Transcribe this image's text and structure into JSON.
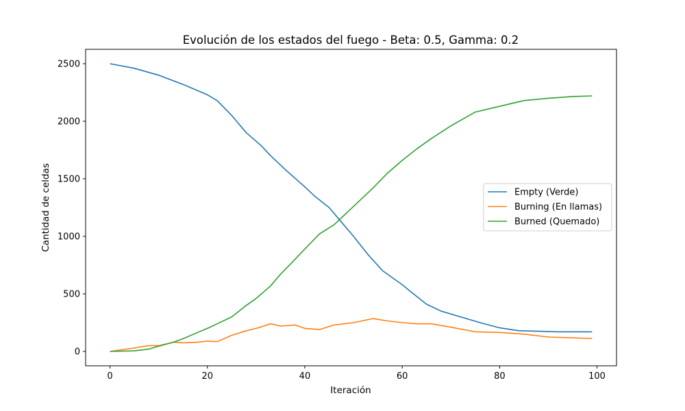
{
  "chart_data": {
    "type": "line",
    "title": "Evolución de los estados del fuego - Beta: 0.5, Gamma: 0.2",
    "xlabel": "Iteración",
    "ylabel": "Cantidad de celdas",
    "xlim": [
      -5,
      104
    ],
    "ylim": [
      -125,
      2625
    ],
    "xticks": [
      0,
      20,
      40,
      60,
      80,
      100
    ],
    "yticks": [
      0,
      500,
      1000,
      1500,
      2000,
      2500
    ],
    "grid": false,
    "legend_position": "center-right",
    "series": [
      {
        "name": "Empty (Verde)",
        "color": "#1f77b4",
        "x": [
          0,
          5,
          10,
          15,
          20,
          22,
          25,
          28,
          31,
          33,
          36,
          40,
          42,
          45,
          47,
          50,
          53,
          56,
          60,
          62,
          65,
          68,
          72,
          76,
          80,
          84,
          88,
          92,
          96,
          99
        ],
        "y": [
          2500,
          2460,
          2400,
          2320,
          2230,
          2180,
          2050,
          1900,
          1790,
          1700,
          1580,
          1430,
          1350,
          1250,
          1150,
          1000,
          840,
          700,
          580,
          510,
          410,
          350,
          300,
          250,
          205,
          180,
          175,
          170,
          170,
          170
        ]
      },
      {
        "name": "Burning (En llamas)",
        "color": "#ff7f0e",
        "x": [
          0,
          5,
          8,
          10,
          13,
          15,
          18,
          20,
          22,
          25,
          28,
          30,
          33,
          35,
          38,
          40,
          43,
          46,
          50,
          54,
          57,
          60,
          63,
          66,
          70,
          75,
          80,
          85,
          90,
          95,
          99
        ],
        "y": [
          0,
          30,
          50,
          50,
          80,
          75,
          80,
          90,
          85,
          140,
          180,
          200,
          240,
          220,
          230,
          200,
          190,
          230,
          250,
          285,
          265,
          250,
          240,
          240,
          210,
          170,
          165,
          150,
          125,
          118,
          112
        ]
      },
      {
        "name": "Burned (Quemado)",
        "color": "#2ca02c",
        "x": [
          0,
          5,
          8,
          10,
          13,
          15,
          18,
          20,
          22,
          25,
          28,
          30,
          33,
          35,
          38,
          40,
          43,
          46,
          50,
          54,
          57,
          60,
          63,
          66,
          70,
          75,
          80,
          85,
          90,
          95,
          99
        ],
        "y": [
          0,
          5,
          20,
          45,
          80,
          110,
          165,
          200,
          240,
          300,
          400,
          460,
          570,
          670,
          800,
          890,
          1020,
          1100,
          1260,
          1420,
          1550,
          1660,
          1760,
          1850,
          1960,
          2080,
          2130,
          2180,
          2200,
          2215,
          2220
        ]
      }
    ]
  }
}
